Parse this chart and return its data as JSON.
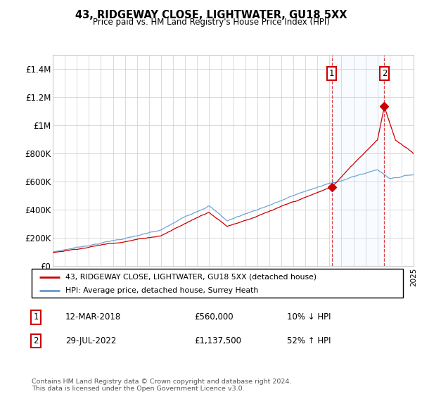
{
  "title": "43, RIDGEWAY CLOSE, LIGHTWATER, GU18 5XX",
  "subtitle": "Price paid vs. HM Land Registry's House Price Index (HPI)",
  "legend_label_red": "43, RIDGEWAY CLOSE, LIGHTWATER, GU18 5XX (detached house)",
  "legend_label_blue": "HPI: Average price, detached house, Surrey Heath",
  "annotation1_date": "12-MAR-2018",
  "annotation1_price": "£560,000",
  "annotation1_hpi": "10% ↓ HPI",
  "annotation2_date": "29-JUL-2022",
  "annotation2_price": "£1,137,500",
  "annotation2_hpi": "52% ↑ HPI",
  "footnote": "Contains HM Land Registry data © Crown copyright and database right 2024.\nThis data is licensed under the Open Government Licence v3.0.",
  "red_color": "#cc0000",
  "blue_color": "#6699cc",
  "shaded_color": "#ddeeff",
  "grid_color": "#cccccc",
  "ylabel_ticks": [
    "£0",
    "£200K",
    "£400K",
    "£600K",
    "£800K",
    "£1M",
    "£1.2M",
    "£1.4M"
  ],
  "ylabel_values": [
    0,
    200000,
    400000,
    600000,
    800000,
    1000000,
    1200000,
    1400000
  ],
  "ylim": [
    0,
    1500000
  ],
  "x_start_year": 1995,
  "x_end_year": 2025,
  "sale1_year": 2018.19,
  "sale1_price": 560000,
  "sale2_year": 2022.57,
  "sale2_price": 1137500
}
